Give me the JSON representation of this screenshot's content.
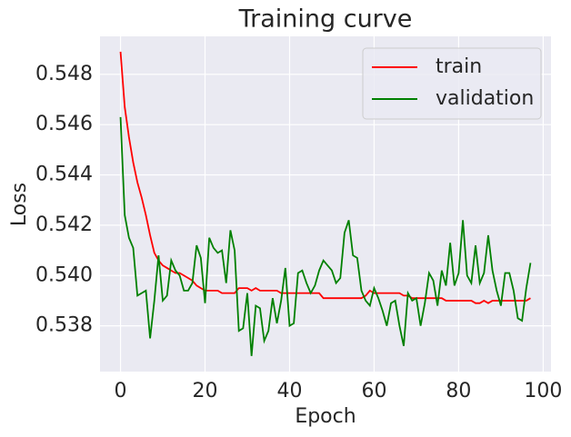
{
  "chart_data": {
    "type": "line",
    "title": "Training curve",
    "xlabel": "Epoch",
    "ylabel": "Loss",
    "x": [
      0,
      1,
      2,
      3,
      4,
      5,
      6,
      7,
      8,
      9,
      10,
      11,
      12,
      13,
      14,
      15,
      16,
      17,
      18,
      19,
      20,
      21,
      22,
      23,
      24,
      25,
      26,
      27,
      28,
      29,
      30,
      31,
      32,
      33,
      34,
      35,
      36,
      37,
      38,
      39,
      40,
      41,
      42,
      43,
      44,
      45,
      46,
      47,
      48,
      49,
      50,
      51,
      52,
      53,
      54,
      55,
      56,
      57,
      58,
      59,
      60,
      61,
      62,
      63,
      64,
      65,
      66,
      67,
      68,
      69,
      70,
      71,
      72,
      73,
      74,
      75,
      76,
      77,
      78,
      79,
      80,
      81,
      82,
      83,
      84,
      85,
      86,
      87,
      88,
      89,
      90,
      91,
      92,
      93,
      94,
      95,
      96,
      97
    ],
    "series": [
      {
        "name": "train",
        "color": "#ff0000",
        "values": [
          0.5489,
          0.5467,
          0.5455,
          0.5445,
          0.5437,
          0.5431,
          0.5424,
          0.5416,
          0.5409,
          0.5406,
          0.5404,
          0.5403,
          0.5402,
          0.5401,
          0.5401,
          0.54,
          0.5399,
          0.5398,
          0.5396,
          0.5395,
          0.5394,
          0.5394,
          0.5394,
          0.5394,
          0.5393,
          0.5393,
          0.5393,
          0.5393,
          0.5395,
          0.5395,
          0.5395,
          0.5394,
          0.5395,
          0.5394,
          0.5394,
          0.5394,
          0.5394,
          0.5394,
          0.5393,
          0.5393,
          0.5393,
          0.5393,
          0.5393,
          0.5393,
          0.5393,
          0.5393,
          0.5393,
          0.5393,
          0.5391,
          0.5391,
          0.5391,
          0.5391,
          0.5391,
          0.5391,
          0.5391,
          0.5391,
          0.5391,
          0.5391,
          0.5392,
          0.5394,
          0.5393,
          0.5393,
          0.5393,
          0.5393,
          0.5393,
          0.5393,
          0.5393,
          0.5392,
          0.5392,
          0.5391,
          0.5391,
          0.5391,
          0.5391,
          0.5391,
          0.5391,
          0.5391,
          0.5391,
          0.539,
          0.539,
          0.539,
          0.539,
          0.539,
          0.539,
          0.539,
          0.5389,
          0.5389,
          0.539,
          0.5389,
          0.539,
          0.539,
          0.539,
          0.539,
          0.539,
          0.539,
          0.539,
          0.539,
          0.539,
          0.5391
        ]
      },
      {
        "name": "validation",
        "color": "#008000",
        "values": [
          0.5463,
          0.5424,
          0.5415,
          0.5411,
          0.5392,
          0.5393,
          0.5394,
          0.5375,
          0.539,
          0.5408,
          0.539,
          0.5392,
          0.5406,
          0.5402,
          0.54,
          0.5394,
          0.5394,
          0.5397,
          0.5412,
          0.5407,
          0.5389,
          0.5415,
          0.5411,
          0.5409,
          0.541,
          0.5397,
          0.5418,
          0.541,
          0.5378,
          0.5379,
          0.5393,
          0.5368,
          0.5388,
          0.5387,
          0.5374,
          0.5378,
          0.5391,
          0.5381,
          0.539,
          0.5403,
          0.538,
          0.5381,
          0.5401,
          0.5402,
          0.5397,
          0.5393,
          0.5396,
          0.5402,
          0.5406,
          0.5404,
          0.5402,
          0.5397,
          0.5399,
          0.5417,
          0.5422,
          0.5408,
          0.5407,
          0.5394,
          0.539,
          0.5388,
          0.5395,
          0.5391,
          0.5386,
          0.538,
          0.5389,
          0.539,
          0.538,
          0.5372,
          0.5393,
          0.539,
          0.5391,
          0.538,
          0.5389,
          0.5401,
          0.5398,
          0.5388,
          0.5402,
          0.5396,
          0.5413,
          0.5396,
          0.5401,
          0.5422,
          0.54,
          0.5397,
          0.5412,
          0.5397,
          0.5401,
          0.5416,
          0.5402,
          0.5394,
          0.5388,
          0.5401,
          0.5401,
          0.5394,
          0.5383,
          0.5382,
          0.5395,
          0.5405
        ]
      }
    ],
    "xlim": [
      -4.85,
      101.85
    ],
    "xticks": [
      0,
      20,
      40,
      60,
      80,
      100
    ],
    "ylim": [
      0.53618,
      0.54951
    ],
    "yticks": [
      0.538,
      {
        "value": 0.54,
        "label": "0.540"
      },
      0.542,
      0.544,
      0.546,
      0.548
    ],
    "grid": true,
    "legend": "upper right"
  }
}
